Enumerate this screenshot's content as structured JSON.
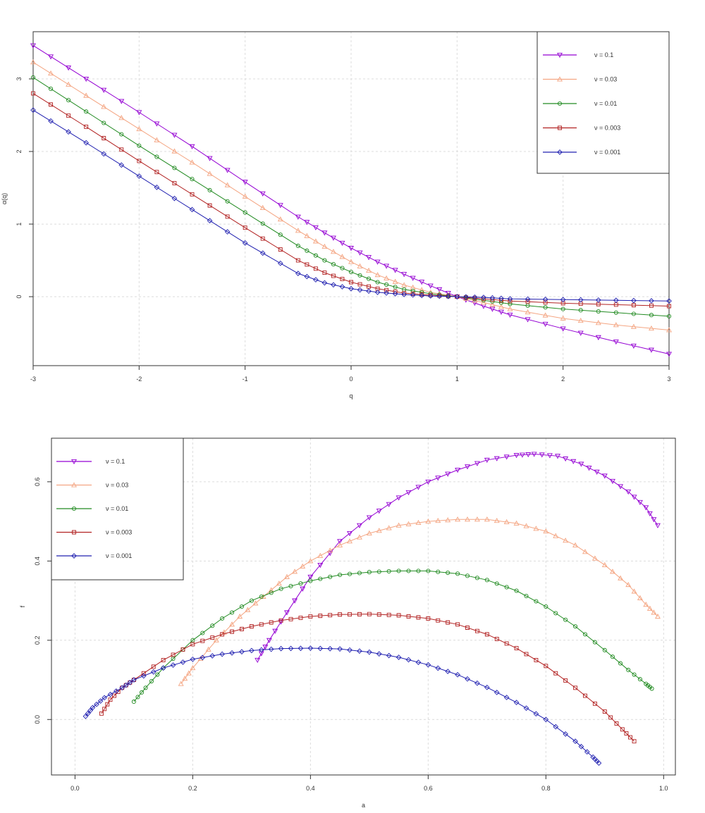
{
  "chart_data": [
    {
      "type": "line",
      "title": "",
      "xlabel": "q",
      "ylabel": "α(q)",
      "xlim": [
        -3,
        3
      ],
      "ylim": [
        -0.95,
        3.65
      ],
      "xticks": [
        "-3",
        "-2",
        "-1",
        "0",
        "1",
        "2",
        "3"
      ],
      "yticks": [
        "0",
        "1",
        "2",
        "3"
      ],
      "grid": true,
      "legend_position": "top-right",
      "series": [
        {
          "name": "ν = 0.1",
          "color": "#9400D3",
          "marker": "triangle-down",
          "x": [
            -3,
            -2.5,
            -2,
            -1.5,
            -1,
            -0.5,
            -0.25,
            0,
            0.25,
            0.5,
            0.75,
            1,
            1.25,
            1.5,
            2,
            2.5,
            3
          ],
          "y": [
            3.46,
            3.0,
            2.54,
            2.07,
            1.58,
            1.1,
            0.88,
            0.67,
            0.48,
            0.31,
            0.15,
            0.0,
            -0.13,
            -0.25,
            -0.44,
            -0.62,
            -0.79
          ]
        },
        {
          "name": "ν = 0.03",
          "color": "#F4A582",
          "marker": "triangle-up",
          "x": [
            -3,
            -2.5,
            -2,
            -1.5,
            -1,
            -0.5,
            -0.25,
            0,
            0.25,
            0.5,
            0.75,
            1,
            1.25,
            1.5,
            2,
            2.5,
            3
          ],
          "y": [
            3.23,
            2.77,
            2.31,
            1.85,
            1.38,
            0.91,
            0.69,
            0.48,
            0.3,
            0.16,
            0.06,
            0.0,
            -0.08,
            -0.17,
            -0.3,
            -0.39,
            -0.46
          ]
        },
        {
          "name": "ν = 0.01",
          "color": "#228B22",
          "marker": "circle",
          "x": [
            -3,
            -2.5,
            -2,
            -1.5,
            -1,
            -0.5,
            -0.25,
            0,
            0.25,
            0.5,
            0.75,
            1,
            1.25,
            1.5,
            2,
            2.5,
            3
          ],
          "y": [
            3.02,
            2.55,
            2.08,
            1.62,
            1.16,
            0.7,
            0.5,
            0.34,
            0.2,
            0.1,
            0.04,
            0.0,
            -0.05,
            -0.1,
            -0.17,
            -0.22,
            -0.27
          ]
        },
        {
          "name": "ν = 0.003",
          "color": "#B22222",
          "marker": "square",
          "x": [
            -3,
            -2.5,
            -2,
            -1.5,
            -1,
            -0.5,
            -0.25,
            0,
            0.25,
            0.5,
            0.75,
            1,
            1.25,
            1.5,
            2,
            2.5,
            3
          ],
          "y": [
            2.8,
            2.34,
            1.87,
            1.41,
            0.95,
            0.5,
            0.33,
            0.2,
            0.11,
            0.05,
            0.02,
            0.0,
            -0.03,
            -0.06,
            -0.09,
            -0.11,
            -0.13
          ]
        },
        {
          "name": "ν = 0.001",
          "color": "#2020B0",
          "marker": "diamond",
          "x": [
            -3,
            -2.5,
            -2,
            -1.5,
            -1,
            -0.5,
            -0.25,
            0,
            0.25,
            0.5,
            0.75,
            1,
            1.25,
            1.5,
            2,
            2.5,
            3
          ],
          "y": [
            2.57,
            2.12,
            1.66,
            1.2,
            0.74,
            0.32,
            0.19,
            0.11,
            0.06,
            0.03,
            0.01,
            0.0,
            -0.01,
            -0.03,
            -0.04,
            -0.05,
            -0.06
          ]
        }
      ]
    },
    {
      "type": "line",
      "title": "",
      "xlabel": "a",
      "ylabel": "f",
      "xlim": [
        -0.04,
        1.02
      ],
      "ylim": [
        -0.14,
        0.71
      ],
      "xticks": [
        "0.0",
        "0.2",
        "0.4",
        "0.6",
        "0.8",
        "1.0"
      ],
      "yticks": [
        "0.0",
        "0.2",
        "0.4",
        "0.6"
      ],
      "grid": true,
      "legend_position": "top-left",
      "series": [
        {
          "name": "ν = 0.1",
          "color": "#9400D3",
          "marker": "triangle-down",
          "x": [
            0.31,
            0.33,
            0.36,
            0.4,
            0.45,
            0.5,
            0.55,
            0.6,
            0.65,
            0.7,
            0.75,
            0.78,
            0.82,
            0.86,
            0.9,
            0.94,
            0.97,
            0.99
          ],
          "y": [
            0.15,
            0.2,
            0.27,
            0.36,
            0.45,
            0.51,
            0.56,
            0.6,
            0.63,
            0.655,
            0.667,
            0.67,
            0.665,
            0.645,
            0.615,
            0.575,
            0.535,
            0.49
          ]
        },
        {
          "name": "ν = 0.03",
          "color": "#F4A582",
          "marker": "triangle-up",
          "x": [
            0.18,
            0.2,
            0.24,
            0.28,
            0.32,
            0.36,
            0.4,
            0.45,
            0.5,
            0.55,
            0.6,
            0.65,
            0.7,
            0.75,
            0.8,
            0.85,
            0.9,
            0.94,
            0.97,
            0.99
          ],
          "y": [
            0.09,
            0.13,
            0.2,
            0.26,
            0.31,
            0.36,
            0.4,
            0.44,
            0.47,
            0.49,
            0.5,
            0.505,
            0.505,
            0.495,
            0.475,
            0.44,
            0.39,
            0.34,
            0.29,
            0.26
          ]
        },
        {
          "name": "ν = 0.01",
          "color": "#228B22",
          "marker": "circle",
          "x": [
            0.1,
            0.12,
            0.15,
            0.2,
            0.25,
            0.3,
            0.35,
            0.4,
            0.45,
            0.5,
            0.55,
            0.6,
            0.65,
            0.7,
            0.75,
            0.8,
            0.85,
            0.9,
            0.94,
            0.97,
            0.98
          ],
          "y": [
            0.045,
            0.08,
            0.13,
            0.2,
            0.255,
            0.3,
            0.33,
            0.35,
            0.365,
            0.372,
            0.375,
            0.375,
            0.368,
            0.352,
            0.325,
            0.285,
            0.235,
            0.175,
            0.125,
            0.09,
            0.078
          ]
        },
        {
          "name": "ν = 0.003",
          "color": "#B22222",
          "marker": "square",
          "x": [
            0.045,
            0.06,
            0.08,
            0.1,
            0.15,
            0.2,
            0.25,
            0.3,
            0.35,
            0.4,
            0.45,
            0.5,
            0.55,
            0.6,
            0.65,
            0.7,
            0.75,
            0.8,
            0.85,
            0.9,
            0.93,
            0.95
          ],
          "y": [
            0.015,
            0.05,
            0.08,
            0.1,
            0.15,
            0.19,
            0.215,
            0.235,
            0.25,
            0.26,
            0.265,
            0.266,
            0.263,
            0.255,
            0.24,
            0.215,
            0.18,
            0.135,
            0.08,
            0.02,
            -0.025,
            -0.055
          ]
        },
        {
          "name": "ν = 0.001",
          "color": "#2020B0",
          "marker": "diamond",
          "x": [
            0.018,
            0.03,
            0.05,
            0.08,
            0.1,
            0.15,
            0.2,
            0.25,
            0.3,
            0.35,
            0.4,
            0.45,
            0.5,
            0.55,
            0.6,
            0.65,
            0.7,
            0.75,
            0.8,
            0.85,
            0.88,
            0.89
          ],
          "y": [
            0.008,
            0.03,
            0.055,
            0.08,
            0.1,
            0.13,
            0.152,
            0.165,
            0.174,
            0.179,
            0.18,
            0.178,
            0.17,
            0.157,
            0.138,
            0.113,
            0.081,
            0.043,
            0.0,
            -0.055,
            -0.095,
            -0.11
          ]
        }
      ]
    }
  ]
}
